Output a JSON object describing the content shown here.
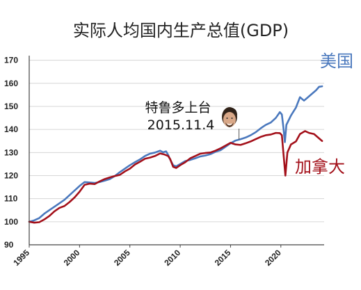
{
  "chart_data": {
    "type": "line",
    "title": "实际人均国内生产总值(GDP)",
    "xlabel": "",
    "ylabel": "",
    "xlim": [
      1995,
      2024.3
    ],
    "ylim": [
      90,
      172
    ],
    "x_ticks": [
      1995,
      2000,
      2005,
      2010,
      2015,
      2020
    ],
    "x_tick_labels": [
      "1995",
      "2000",
      "2005",
      "2010",
      "2015",
      "2020"
    ],
    "y_ticks": [
      90,
      100,
      110,
      120,
      130,
      140,
      150,
      160,
      170
    ],
    "y_tick_labels": [
      "90",
      "100",
      "110",
      "120",
      "130",
      "140",
      "150",
      "160",
      "170"
    ],
    "grid": "horizontal",
    "annotation": {
      "line1": "特鲁多上台",
      "line2": "2015.11.4",
      "x": 2015.84,
      "y": 135.5,
      "portrait": "man-face-photo"
    },
    "series": [
      {
        "name": "美国",
        "color": "#4a78bd",
        "points": [
          [
            1995.0,
            100
          ],
          [
            1995.5,
            100.6
          ],
          [
            1996.0,
            101.6
          ],
          [
            1996.5,
            103.5
          ],
          [
            1997.0,
            105
          ],
          [
            1997.5,
            106.5
          ],
          [
            1998.0,
            108
          ],
          [
            1998.5,
            109.5
          ],
          [
            1999.0,
            111.5
          ],
          [
            1999.5,
            113.5
          ],
          [
            2000.0,
            115.5
          ],
          [
            2000.5,
            117.2
          ],
          [
            2001.0,
            117
          ],
          [
            2001.5,
            116.8
          ],
          [
            2002.0,
            117.2
          ],
          [
            2002.5,
            117.8
          ],
          [
            2003.0,
            118.5
          ],
          [
            2003.5,
            119.8
          ],
          [
            2004.0,
            121.5
          ],
          [
            2004.5,
            123
          ],
          [
            2005.0,
            124.5
          ],
          [
            2005.5,
            125.8
          ],
          [
            2006.0,
            127
          ],
          [
            2006.5,
            128.5
          ],
          [
            2007.0,
            129.5
          ],
          [
            2007.5,
            130
          ],
          [
            2008.0,
            130.8
          ],
          [
            2008.3,
            130.1
          ],
          [
            2008.6,
            130.5
          ],
          [
            2008.8,
            129
          ],
          [
            2009.0,
            127
          ],
          [
            2009.3,
            124.5
          ],
          [
            2009.6,
            124
          ],
          [
            2010.0,
            125
          ],
          [
            2010.5,
            126.3
          ],
          [
            2011.0,
            126.8
          ],
          [
            2011.5,
            127.5
          ],
          [
            2012.0,
            128.3
          ],
          [
            2012.5,
            128.7
          ],
          [
            2013.0,
            129.3
          ],
          [
            2013.5,
            130.3
          ],
          [
            2014.0,
            131
          ],
          [
            2014.5,
            132.5
          ],
          [
            2015.0,
            134
          ],
          [
            2015.5,
            135.2
          ],
          [
            2015.84,
            135.6
          ],
          [
            2016.0,
            135.8
          ],
          [
            2016.5,
            136.5
          ],
          [
            2017.0,
            137.5
          ],
          [
            2017.5,
            138.8
          ],
          [
            2018.0,
            140.5
          ],
          [
            2018.5,
            142
          ],
          [
            2019.0,
            143
          ],
          [
            2019.5,
            145
          ],
          [
            2019.9,
            147.5
          ],
          [
            2020.1,
            146.5
          ],
          [
            2020.25,
            141
          ],
          [
            2020.4,
            134.5
          ],
          [
            2020.55,
            142
          ],
          [
            2021.0,
            146
          ],
          [
            2021.5,
            149.5
          ],
          [
            2021.9,
            154
          ],
          [
            2022.3,
            152.5
          ],
          [
            2022.7,
            154
          ],
          [
            2023.1,
            155.5
          ],
          [
            2023.5,
            157
          ],
          [
            2023.8,
            158.5
          ],
          [
            2024.1,
            158.7
          ]
        ]
      },
      {
        "name": "加拿大",
        "color": "#a3101a",
        "points": [
          [
            1995.0,
            100
          ],
          [
            1995.5,
            99.6
          ],
          [
            1996.0,
            99.8
          ],
          [
            1996.5,
            101
          ],
          [
            1997.0,
            102.5
          ],
          [
            1997.5,
            104.5
          ],
          [
            1998.0,
            106
          ],
          [
            1998.5,
            106.8
          ],
          [
            1999.0,
            108.5
          ],
          [
            1999.5,
            110.5
          ],
          [
            2000.0,
            113
          ],
          [
            2000.5,
            116
          ],
          [
            2001.0,
            116.5
          ],
          [
            2001.5,
            116.3
          ],
          [
            2002.0,
            117.5
          ],
          [
            2002.5,
            118.5
          ],
          [
            2003.0,
            119.2
          ],
          [
            2003.5,
            119.8
          ],
          [
            2004.0,
            120.3
          ],
          [
            2004.5,
            121.8
          ],
          [
            2005.0,
            123
          ],
          [
            2005.5,
            124.8
          ],
          [
            2006.0,
            126
          ],
          [
            2006.5,
            127.3
          ],
          [
            2007.0,
            127.8
          ],
          [
            2007.5,
            128.5
          ],
          [
            2008.0,
            129.6
          ],
          [
            2008.4,
            129.2
          ],
          [
            2008.8,
            128.5
          ],
          [
            2009.0,
            127.2
          ],
          [
            2009.3,
            123.8
          ],
          [
            2009.6,
            123.3
          ],
          [
            2010.0,
            124.5
          ],
          [
            2010.5,
            125.8
          ],
          [
            2011.0,
            127.5
          ],
          [
            2011.5,
            128.5
          ],
          [
            2012.0,
            129.5
          ],
          [
            2012.5,
            129.8
          ],
          [
            2013.0,
            130
          ],
          [
            2013.5,
            130.8
          ],
          [
            2014.0,
            131.8
          ],
          [
            2014.5,
            133
          ],
          [
            2015.0,
            134.2
          ],
          [
            2015.5,
            133.5
          ],
          [
            2016.0,
            133.3
          ],
          [
            2016.5,
            134
          ],
          [
            2017.0,
            134.8
          ],
          [
            2017.5,
            135.8
          ],
          [
            2018.0,
            136.8
          ],
          [
            2018.5,
            137.5
          ],
          [
            2019.0,
            137.8
          ],
          [
            2019.5,
            138.5
          ],
          [
            2019.9,
            138.4
          ],
          [
            2020.1,
            137.5
          ],
          [
            2020.25,
            130
          ],
          [
            2020.45,
            120
          ],
          [
            2020.65,
            130
          ],
          [
            2021.0,
            133.5
          ],
          [
            2021.5,
            134.8
          ],
          [
            2021.9,
            138
          ],
          [
            2022.4,
            139.3
          ],
          [
            2022.8,
            138.5
          ],
          [
            2023.3,
            138
          ],
          [
            2023.7,
            136.5
          ],
          [
            2024.1,
            135
          ]
        ]
      }
    ]
  }
}
